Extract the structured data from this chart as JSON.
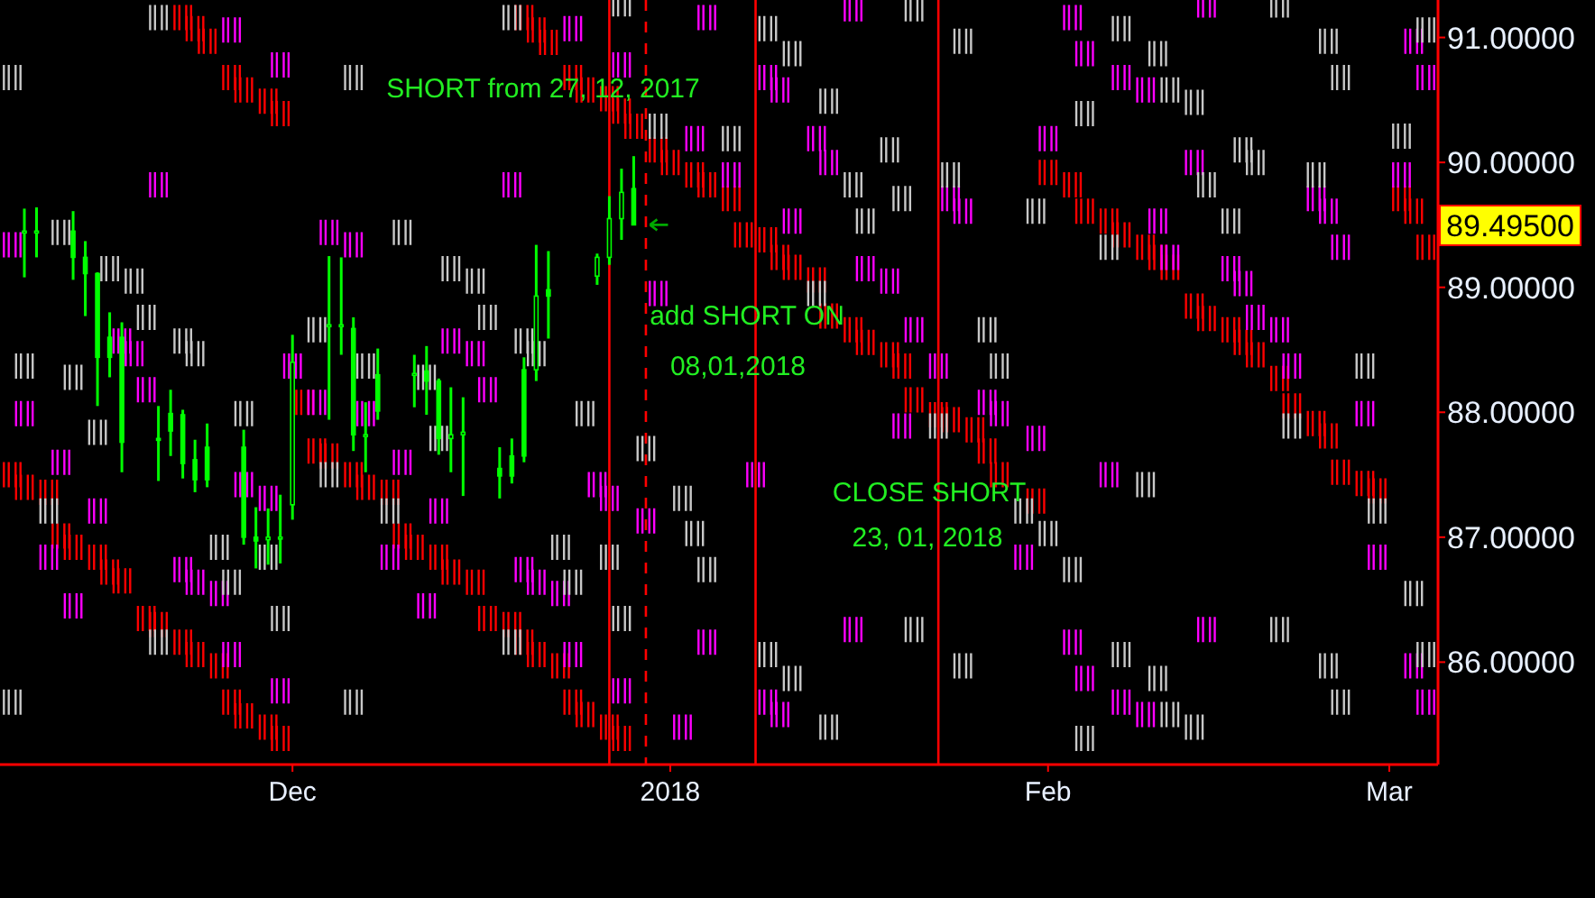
{
  "chart_data": {
    "type": "candlestick",
    "x": [
      "2017-11-09",
      "2017-11-10",
      "2017-11-13",
      "2017-11-14",
      "2017-11-15",
      "2017-11-16",
      "2017-11-17",
      "2017-11-20",
      "2017-11-21",
      "2017-11-22",
      "2017-11-23",
      "2017-11-24",
      "2017-11-27",
      "2017-11-28",
      "2017-11-29",
      "2017-11-30",
      "2017-12-01",
      "2017-12-04",
      "2017-12-05",
      "2017-12-06",
      "2017-12-07",
      "2017-12-08",
      "2017-12-11",
      "2017-12-12",
      "2017-12-13",
      "2017-12-14",
      "2017-12-15",
      "2017-12-18",
      "2017-12-19",
      "2017-12-20",
      "2017-12-21",
      "2017-12-22",
      "2017-12-26",
      "2017-12-27",
      "2017-12-28",
      "2017-12-29"
    ],
    "ohlc": [
      [
        89.45,
        89.63,
        89.08,
        89.45
      ],
      [
        89.45,
        89.64,
        89.24,
        89.45
      ],
      [
        89.45,
        89.61,
        89.06,
        89.24
      ],
      [
        89.24,
        89.37,
        88.77,
        89.11
      ],
      [
        89.11,
        89.12,
        88.05,
        88.44
      ],
      [
        88.6,
        88.8,
        88.28,
        88.44
      ],
      [
        88.6,
        88.72,
        87.52,
        87.76
      ],
      [
        87.79,
        88.05,
        87.45,
        87.78
      ],
      [
        87.99,
        88.18,
        87.65,
        87.85
      ],
      [
        87.98,
        88.02,
        87.47,
        87.59
      ],
      [
        87.62,
        87.78,
        87.36,
        87.46
      ],
      [
        87.72,
        87.91,
        87.4,
        87.46
      ],
      [
        87.72,
        87.86,
        86.94,
        87.0
      ],
      [
        87.0,
        87.24,
        86.75,
        86.97
      ],
      [
        86.98,
        87.23,
        86.78,
        87.0
      ],
      [
        87.0,
        87.34,
        86.79,
        87.0
      ],
      [
        87.26,
        88.62,
        87.14,
        88.4
      ],
      [
        88.7,
        89.25,
        87.94,
        88.7
      ],
      [
        88.7,
        89.24,
        88.46,
        88.7
      ],
      [
        88.67,
        88.76,
        87.69,
        87.82
      ],
      [
        87.81,
        88.08,
        87.52,
        87.82
      ],
      [
        88.3,
        88.51,
        87.94,
        88.01
      ],
      [
        88.31,
        88.46,
        88.04,
        88.31
      ],
      [
        88.33,
        88.53,
        87.98,
        88.25
      ],
      [
        88.25,
        88.27,
        87.66,
        87.79
      ],
      [
        87.79,
        88.2,
        87.52,
        87.82
      ],
      [
        87.82,
        88.12,
        87.33,
        87.84
      ],
      [
        87.55,
        87.72,
        87.31,
        87.49
      ],
      [
        87.65,
        87.79,
        87.43,
        87.49
      ],
      [
        88.34,
        88.44,
        87.6,
        87.65
      ],
      [
        88.34,
        89.34,
        88.25,
        88.93
      ],
      [
        88.98,
        89.29,
        88.59,
        88.93
      ],
      [
        89.09,
        89.27,
        89.02,
        89.24
      ],
      [
        89.24,
        89.73,
        89.18,
        89.55
      ],
      [
        89.55,
        89.95,
        89.38,
        89.76
      ],
      [
        89.79,
        90.05,
        89.5,
        89.5
      ]
    ],
    "color": "#00ff00",
    "series": [
      {
        "type": "scatter",
        "color": "#ff0000",
        "x": [
          "2017-11-22",
          "2017-11-23",
          "2017-11-24",
          "2017-11-26",
          "2017-11-27",
          "2017-11-29",
          "2017-11-30",
          "2017-12-20",
          "2017-12-21",
          "2017-12-22",
          "2017-12-24",
          "2017-12-25",
          "2017-12-27",
          "2017-12-28",
          "2017-12-29",
          "2017-12-31",
          "2018-01-01",
          "2018-01-03",
          "2018-01-04",
          "2018-01-06",
          "2018-01-07",
          "2018-01-09",
          "2018-01-10",
          "2018-01-11",
          "2018-01-13",
          "2018-01-14",
          "2018-01-16",
          "2018-01-17",
          "2018-01-19",
          "2018-01-20",
          "2018-01-21",
          "2018-01-23",
          "2018-01-24",
          "2018-01-26",
          "2018-01-27",
          "2018-01-28",
          "2018-01-31",
          "2018-02-01",
          "2018-02-03",
          "2018-02-04",
          "2018-02-06",
          "2018-02-07",
          "2018-02-09",
          "2018-02-10",
          "2018-02-11",
          "2018-02-13",
          "2018-02-14",
          "2018-02-16",
          "2018-02-17",
          "2018-02-18",
          "2018-02-20",
          "2018-02-21",
          "2018-02-23",
          "2018-02-24",
          "2018-02-25",
          "2018-02-27",
          "2018-02-28",
          "2018-03-02",
          "2018-03-03",
          "2018-03-04",
          "2017-11-08",
          "2017-11-09",
          "2017-11-11",
          "2017-11-12",
          "2017-11-13",
          "2017-11-15",
          "2017-11-16",
          "2017-11-17",
          "2017-11-19",
          "2017-11-20",
          "2017-11-22",
          "2017-11-23",
          "2017-11-25",
          "2017-11-26",
          "2017-11-27",
          "2017-11-29",
          "2017-11-30",
          "2017-12-02",
          "2017-12-03",
          "2017-12-04",
          "2017-12-06",
          "2017-12-07",
          "2017-12-09",
          "2017-12-10",
          "2017-12-11",
          "2017-12-13",
          "2017-12-14",
          "2017-12-16",
          "2017-12-17",
          "2017-12-19",
          "2017-12-20",
          "2017-12-21",
          "2017-12-23",
          "2017-12-24",
          "2017-12-25",
          "2017-12-27",
          "2017-12-28"
        ],
        "values": [
          91.16,
          91.07,
          90.97,
          90.68,
          90.58,
          90.49,
          90.39,
          91.16,
          91.06,
          90.96,
          90.68,
          90.58,
          90.51,
          90.41,
          90.29,
          90.1,
          90.0,
          89.9,
          89.82,
          89.71,
          89.42,
          89.38,
          89.24,
          89.16,
          89.06,
          88.77,
          88.66,
          88.56,
          88.46,
          88.37,
          88.1,
          87.98,
          87.94,
          87.86,
          87.69,
          87.5,
          87.29,
          89.92,
          89.82,
          89.61,
          89.53,
          89.42,
          89.32,
          89.24,
          89.16,
          88.85,
          88.75,
          88.66,
          88.56,
          88.46,
          88.27,
          88.05,
          87.91,
          87.81,
          87.52,
          87.43,
          87.37,
          89.71,
          89.61,
          89.32,
          87.5,
          87.4,
          87.36,
          87.01,
          86.92,
          86.84,
          86.72,
          86.65,
          86.35,
          86.3,
          86.16,
          86.06,
          85.97,
          85.68,
          85.57,
          85.48,
          85.39,
          88.08,
          87.69,
          87.65,
          87.5,
          87.4,
          87.36,
          87.01,
          86.92,
          86.84,
          86.72,
          86.64,
          86.35,
          86.3,
          86.16,
          86.06,
          85.97,
          85.68,
          85.58,
          85.48,
          85.39
        ]
      },
      {
        "type": "scatter",
        "color": "#ff00ff",
        "x": [
          "2017-11-26",
          "2017-11-30",
          "2017-11-20",
          "2017-12-19",
          "2017-12-04",
          "2017-12-06",
          "2017-11-08",
          "2017-12-14",
          "2017-12-16",
          "2017-12-01",
          "2017-11-17",
          "2017-11-18",
          "2017-11-19",
          "2017-11-09",
          "2017-12-03",
          "2017-12-07",
          "2017-12-17",
          "2017-11-12",
          "2017-11-15",
          "2017-11-11",
          "2017-11-13",
          "2017-11-22",
          "2017-11-23",
          "2017-11-25",
          "2017-11-27",
          "2017-11-29",
          "2017-11-26",
          "2017-11-30",
          "2017-12-10",
          "2017-12-13",
          "2017-12-09",
          "2017-12-12",
          "2017-12-20",
          "2017-12-21",
          "2017-12-23",
          "2017-12-26",
          "2017-12-27",
          "2017-12-30",
          "2017-12-24",
          "2017-12-28",
          "2018-01-02",
          "2018-01-04",
          "2018-01-08",
          "2018-01-09",
          "2018-01-10",
          "2018-01-16",
          "2018-01-20",
          "2018-01-28",
          "2018-01-27",
          "2018-01-31",
          "2018-01-30",
          "2018-01-04",
          "2017-12-28",
          "2017-12-24",
          "2018-01-16",
          "2018-01-09",
          "2018-01-10",
          "2018-01-03",
          "2018-01-06",
          "2018-01-11",
          "2018-01-13",
          "2018-01-14",
          "2018-01-17",
          "2018-01-19",
          "2017-12-31",
          "2018-01-21",
          "2018-01-23",
          "2018-01-24",
          "2018-01-25",
          "2018-02-01",
          "2018-02-03",
          "2018-02-04",
          "2018-02-07",
          "2018-02-09",
          "2018-02-13",
          "2018-02-10",
          "2018-02-11",
          "2018-02-16",
          "2018-02-17",
          "2018-02-14",
          "2018-02-18",
          "2018-02-20",
          "2018-02-21",
          "2018-02-27",
          "2018-02-23",
          "2018-02-24",
          "2018-02-25",
          "2018-03-02",
          "2018-03-03",
          "2018-03-04",
          "2018-02-06",
          "2018-02-28",
          "2018-02-03",
          "2018-02-04",
          "2018-02-07",
          "2018-02-09",
          "2018-02-14",
          "2018-03-03",
          "2018-03-04"
        ],
        "values": [
          91.06,
          90.78,
          89.82,
          89.82,
          89.44,
          89.34,
          89.34,
          88.57,
          88.47,
          88.37,
          88.57,
          88.47,
          88.18,
          87.99,
          88.08,
          87.99,
          88.18,
          87.6,
          87.21,
          86.84,
          86.45,
          86.74,
          86.64,
          86.55,
          87.42,
          87.31,
          86.06,
          85.77,
          87.6,
          87.21,
          86.84,
          86.45,
          86.74,
          86.64,
          86.55,
          87.42,
          87.31,
          87.13,
          86.06,
          85.77,
          85.48,
          86.16,
          87.5,
          85.68,
          85.58,
          86.26,
          87.89,
          87.99,
          88.08,
          87.79,
          86.84,
          91.16,
          90.78,
          91.07,
          91.23,
          90.68,
          90.58,
          90.19,
          89.9,
          89.53,
          90.19,
          90.0,
          89.15,
          89.05,
          88.95,
          88.66,
          88.37,
          89.71,
          89.61,
          90.19,
          91.16,
          90.87,
          90.68,
          90.58,
          90.0,
          89.53,
          89.24,
          89.15,
          89.03,
          91.26,
          88.76,
          88.66,
          88.37,
          87.99,
          89.71,
          89.61,
          89.32,
          89.9,
          90.97,
          90.68,
          87.5,
          86.84,
          86.16,
          85.87,
          85.68,
          85.58,
          86.26,
          85.97,
          85.68
        ]
      },
      {
        "type": "scatter",
        "color": "#c8c8c8",
        "x": [
          "2017-11-08",
          "2017-11-20",
          "2017-12-06",
          "2017-12-19",
          "2017-11-12",
          "2017-11-16",
          "2017-11-18",
          "2017-12-10",
          "2017-12-14",
          "2017-12-16",
          "2017-11-19",
          "2017-12-17",
          "2017-11-22",
          "2017-11-23",
          "2017-11-09",
          "2017-11-13",
          "2017-12-07",
          "2017-12-03",
          "2017-12-20",
          "2017-12-21",
          "2017-11-27",
          "2017-12-12",
          "2017-11-15",
          "2017-11-11",
          "2017-12-13",
          "2017-12-04",
          "2017-12-09",
          "2017-11-25",
          "2017-11-26",
          "2017-11-29",
          "2017-11-30",
          "2017-11-20",
          "2017-11-08",
          "2017-12-06",
          "2017-12-19",
          "2017-12-25",
          "2017-12-30",
          "2017-12-23",
          "2017-12-24",
          "2017-12-27",
          "2017-12-28",
          "2018-01-02",
          "2018-01-03",
          "2018-01-04",
          "2018-01-09",
          "2018-01-11",
          "2018-01-14",
          "2018-01-21",
          "2018-01-25",
          "2018-01-23",
          "2018-01-30",
          "2018-02-01",
          "2018-02-03",
          "2018-02-09",
          "2018-02-28",
          "2018-03-03",
          "2018-02-20",
          "2018-02-07",
          "2018-02-10",
          "2018-02-11",
          "2018-02-13",
          "2018-02-04",
          "2018-02-24",
          "2018-02-25",
          "2018-03-04",
          "2017-12-31",
          "2018-01-06",
          "2018-01-09",
          "2018-01-11",
          "2018-01-14",
          "2018-01-16",
          "2018-01-19",
          "2018-01-17",
          "2018-01-20",
          "2018-01-13",
          "2018-01-24",
          "2018-01-25",
          "2018-01-31",
          "2018-01-27",
          "2018-01-28",
          "2018-01-21",
          "2017-12-28",
          "2018-02-04",
          "2018-02-07",
          "2018-02-10",
          "2018-02-11",
          "2018-02-13",
          "2018-02-14",
          "2018-02-16",
          "2018-02-06",
          "2018-02-17",
          "2018-02-18",
          "2018-02-20",
          "2018-02-23",
          "2018-02-24",
          "2018-02-25",
          "2018-03-02",
          "2018-03-04",
          "2018-02-27",
          "2018-02-21"
        ],
        "values": [
          90.68,
          91.16,
          90.68,
          91.16,
          89.44,
          89.15,
          89.05,
          89.44,
          89.15,
          89.05,
          88.76,
          88.76,
          88.57,
          88.47,
          88.37,
          88.28,
          88.37,
          88.66,
          88.57,
          88.47,
          87.99,
          88.28,
          87.84,
          87.21,
          87.79,
          87.5,
          87.21,
          86.92,
          86.64,
          86.84,
          86.35,
          86.16,
          85.68,
          85.68,
          86.16,
          87.99,
          87.71,
          86.92,
          86.64,
          86.84,
          86.35,
          87.31,
          87.03,
          86.74,
          86.06,
          85.87,
          85.48,
          86.26,
          85.97,
          87.89,
          87.21,
          87.03,
          86.74,
          87.42,
          87.21,
          86.55,
          86.26,
          86.06,
          85.87,
          85.58,
          85.48,
          85.39,
          85.97,
          85.68,
          86.06,
          90.29,
          90.19,
          91.07,
          90.87,
          90.49,
          89.82,
          90.1,
          89.53,
          89.71,
          88.95,
          89.9,
          90.97,
          89.61,
          88.66,
          88.37,
          91.23,
          91.27,
          90.39,
          91.07,
          90.87,
          90.58,
          90.48,
          89.82,
          89.53,
          89.32,
          90.1,
          90.0,
          91.26,
          89.9,
          90.97,
          90.68,
          90.21,
          91.06,
          88.37,
          87.89
        ]
      }
    ],
    "xlim": [
      "2017-11-07",
      "2018-03-05"
    ],
    "xticks": [
      {
        "value": "2017-12-01",
        "label": "Dec"
      },
      {
        "value": "2018-01-01",
        "label": "2018"
      },
      {
        "value": "2018-02-01",
        "label": "Feb"
      },
      {
        "value": "2018-03-01",
        "label": "Mar"
      }
    ],
    "ylim": [
      85.18,
      91.3
    ],
    "yticks": [
      {
        "value": 86,
        "label": "86.00000"
      },
      {
        "value": 87,
        "label": "87.00000"
      },
      {
        "value": 88,
        "label": "88.00000"
      },
      {
        "value": 89,
        "label": "89.00000"
      },
      {
        "value": 90,
        "label": "90.00000"
      },
      {
        "value": 91,
        "label": "91.00000"
      }
    ],
    "ref_lines": [
      {
        "axis": "x",
        "value": "2017-12-27",
        "color": "#ff0000"
      },
      {
        "axis": "x",
        "value": "2017-12-30",
        "color": "#ff0000",
        "line_style": "dashed"
      },
      {
        "axis": "x",
        "value": "2018-01-08",
        "color": "#ff0000"
      },
      {
        "axis": "x",
        "value": "2018-01-23",
        "color": "#ff0000"
      }
    ],
    "annotations": [
      "SHORT from 27, 12, 2017",
      "add SHORT ON",
      "08,01,2018",
      "CLOSE SHORT",
      "23, 01, 2018",
      "89.49500"
    ],
    "grid": false
  }
}
